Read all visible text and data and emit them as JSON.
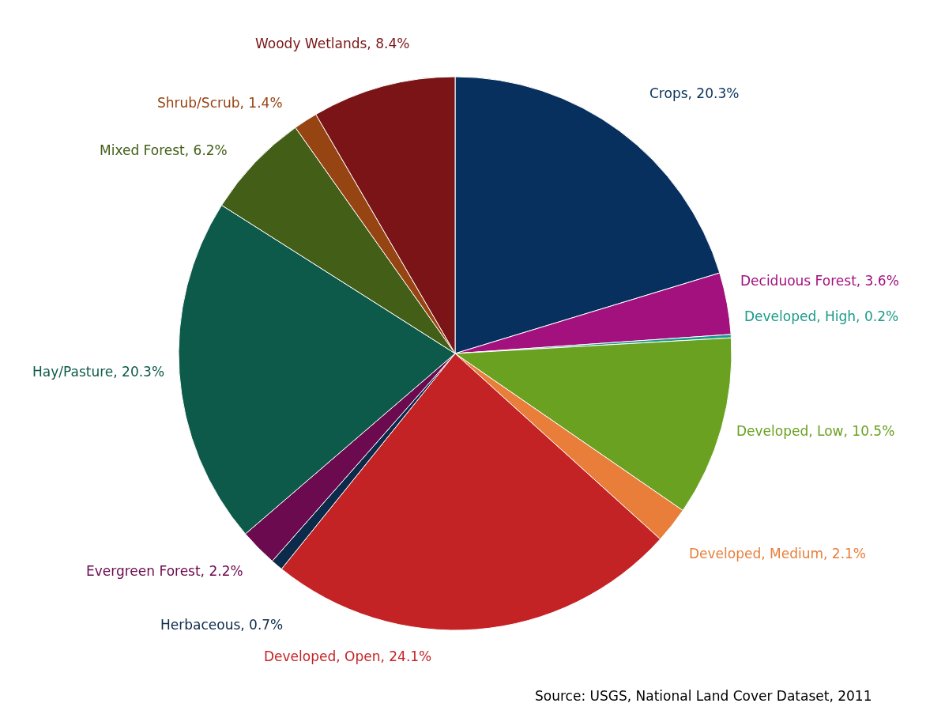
{
  "chart_data": {
    "type": "pie",
    "categories": [
      "Crops",
      "Deciduous Forest",
      "Developed, High",
      "Developed, Low",
      "Developed, Medium",
      "Developed, Open",
      "Herbaceous",
      "Evergreen Forest",
      "Hay/Pasture",
      "Mixed Forest",
      "Shrub/Scrub",
      "Woody Wetlands"
    ],
    "values": [
      20.3,
      3.6,
      0.2,
      10.5,
      2.1,
      24.1,
      0.7,
      2.2,
      20.3,
      6.2,
      1.4,
      8.4
    ],
    "value_labels": [
      "20.3%",
      "3.6%",
      "0.2%",
      "10.5%",
      "2.1%",
      "24.1%",
      "0.7%",
      "2.2%",
      "20.3%",
      "6.2%",
      "1.4%",
      "8.4%"
    ],
    "colors": [
      "#08305e",
      "#a3117e",
      "#1a9a8a",
      "#6aa121",
      "#e97e3a",
      "#c42326",
      "#0c2a4a",
      "#6b0a4e",
      "#0e5a4a",
      "#425e17",
      "#974413",
      "#7b1416"
    ],
    "annotations": [
      "Source: USGS, National Land Cover Dataset, 2011"
    ],
    "legend": false
  }
}
